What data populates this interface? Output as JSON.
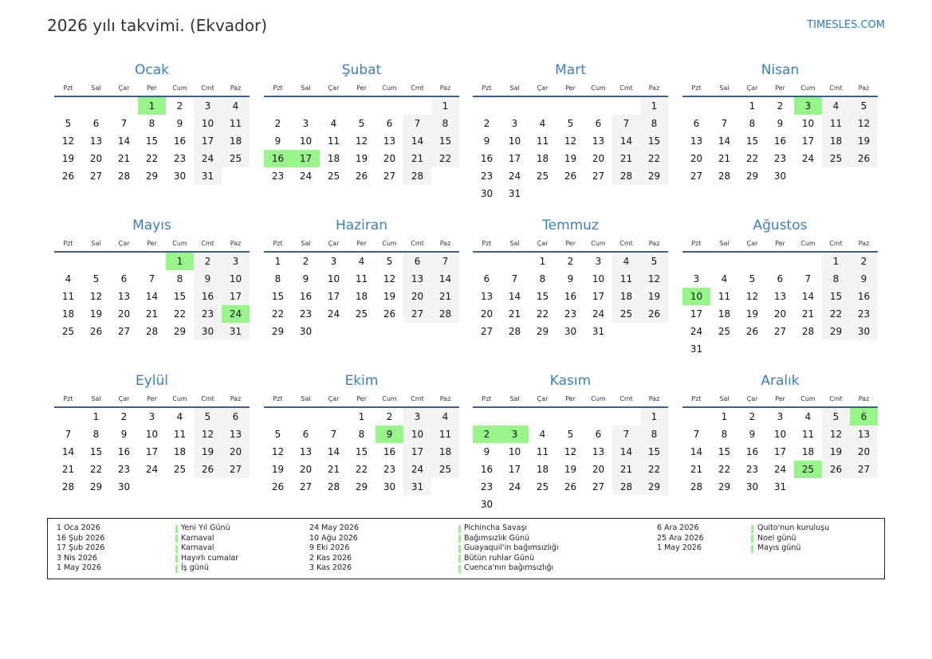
{
  "title": "2026 yılı takvimi. (Ekvador)",
  "brand": "TIMESLES.COM",
  "weekdays": [
    "Pzt",
    "Sal",
    "Çar",
    "Per",
    "Cum",
    "Cmt",
    "Paz"
  ],
  "year": 2026,
  "colors": {
    "holiday": "#98f58a",
    "weekend": "#f4f4f4",
    "month_title": "#3a7fc1"
  },
  "months": [
    {
      "name": "Ocak",
      "holidays": [
        1
      ]
    },
    {
      "name": "Şubat",
      "holidays": [
        16,
        17
      ]
    },
    {
      "name": "Mart",
      "holidays": []
    },
    {
      "name": "Nisan",
      "holidays": [
        3
      ]
    },
    {
      "name": "Mayıs",
      "holidays": [
        1,
        24
      ]
    },
    {
      "name": "Haziran",
      "holidays": []
    },
    {
      "name": "Temmuz",
      "holidays": []
    },
    {
      "name": "Ağustos",
      "holidays": [
        10
      ]
    },
    {
      "name": "Eylül",
      "holidays": []
    },
    {
      "name": "Ekim",
      "holidays": [
        9
      ]
    },
    {
      "name": "Kasım",
      "holidays": [
        2,
        3
      ]
    },
    {
      "name": "Aralık",
      "holidays": [
        6,
        25
      ]
    }
  ],
  "legend": [
    {
      "date": "1 Oca 2026",
      "name": "Yeni Yıl Günü"
    },
    {
      "date": "16 Şub 2026",
      "name": "Karnaval"
    },
    {
      "date": "17 Şub 2026",
      "name": "Karnaval"
    },
    {
      "date": "3 Nis 2026",
      "name": "Hayırlı cumalar"
    },
    {
      "date": "1 May 2026",
      "name": "İş günü"
    },
    {
      "date": "24 May 2026",
      "name": "Pichincha Savaşı"
    },
    {
      "date": "10 Ağu 2026",
      "name": "Bağımsızlık Günü"
    },
    {
      "date": "9 Eki 2026",
      "name": "Guayaquil'in bağımsızlığı"
    },
    {
      "date": "2 Kas 2026",
      "name": "Bütün ruhlar Günü"
    },
    {
      "date": "3 Kas 2026",
      "name": "Cuenca'nın bağımsızlığı"
    },
    {
      "date": "6 Ara 2026",
      "name": "Quito'nun kuruluşu"
    },
    {
      "date": "25 Ara 2026",
      "name": "Noel günü"
    },
    {
      "date": "1 May 2026",
      "name": "Mayıs günü"
    }
  ]
}
